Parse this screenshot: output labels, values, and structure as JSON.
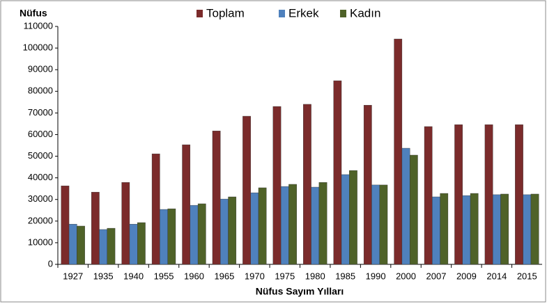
{
  "chart_data": {
    "type": "bar",
    "y_label": "Nüfus",
    "x_label": "Nüfus Sayım Yılları",
    "categories": [
      "1927",
      "1935",
      "1940",
      "1955",
      "1960",
      "1965",
      "1970",
      "1975",
      "1980",
      "1985",
      "1990",
      "2000",
      "2007",
      "2009",
      "2014",
      "2015"
    ],
    "series": [
      {
        "name": "Toplam",
        "color": "#7b2b2b",
        "values": [
          36300,
          33400,
          37900,
          51100,
          55300,
          61700,
          68500,
          73000,
          74000,
          84900,
          73600,
          104200,
          63700,
          64600,
          64600,
          64600
        ]
      },
      {
        "name": "Erkek",
        "color": "#4f81bd",
        "values": [
          18600,
          16100,
          18600,
          25400,
          27300,
          30200,
          33100,
          36000,
          35700,
          41500,
          36700,
          53700,
          31200,
          31800,
          32200,
          32200
        ]
      },
      {
        "name": "Kadın",
        "color": "#4f6228",
        "values": [
          17700,
          16700,
          19300,
          25700,
          28000,
          31200,
          35400,
          37000,
          37900,
          43400,
          36700,
          50500,
          32800,
          32800,
          32500,
          32500
        ]
      }
    ],
    "ylim": [
      0,
      110000
    ],
    "yticks": [
      0,
      10000,
      20000,
      30000,
      40000,
      50000,
      60000,
      70000,
      80000,
      90000,
      100000,
      110000
    ],
    "grid": false,
    "legend": "top"
  }
}
